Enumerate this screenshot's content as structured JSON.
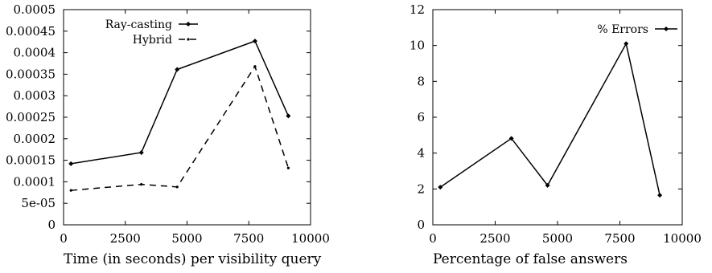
{
  "chart_data": [
    {
      "type": "line",
      "xlabel": "Time (in seconds) per visibility query",
      "ylabel": "",
      "xlim": [
        0,
        10000
      ],
      "ylim": [
        0,
        0.0005
      ],
      "xticks": [
        "0",
        "2500",
        "5000",
        "7500",
        "10000"
      ],
      "yticks": [
        "0",
        "5e-05",
        "0.0001",
        "0.00015",
        "0.0002",
        "0.00025",
        "0.0003",
        "0.00035",
        "0.0004",
        "0.00045",
        "0.0005"
      ],
      "legend_position": "top-left",
      "series": [
        {
          "name": "Ray-casting",
          "style": "solid",
          "x": [
            300,
            3150,
            4600,
            7750,
            9100
          ],
          "y": [
            0.000142,
            0.000168,
            0.000361,
            0.000427,
            0.000253
          ]
        },
        {
          "name": "Hybrid",
          "style": "dashed",
          "x": [
            300,
            3150,
            4600,
            7750,
            9100
          ],
          "y": [
            8e-05,
            9.4e-05,
            8.8e-05,
            0.000368,
            0.000132
          ]
        }
      ]
    },
    {
      "type": "line",
      "xlabel": "Percentage of false answers",
      "ylabel": "",
      "xlim": [
        0,
        10000
      ],
      "ylim": [
        0,
        12
      ],
      "xticks": [
        "0",
        "2500",
        "5000",
        "7500",
        "10000"
      ],
      "yticks": [
        "0",
        "2",
        "4",
        "6",
        "8",
        "10",
        "12"
      ],
      "legend_position": "top-right",
      "series": [
        {
          "name": "% Errors",
          "style": "solid",
          "x": [
            300,
            3150,
            4600,
            7750,
            9100
          ],
          "y": [
            2.1,
            4.82,
            2.2,
            10.1,
            1.65
          ]
        }
      ]
    }
  ]
}
